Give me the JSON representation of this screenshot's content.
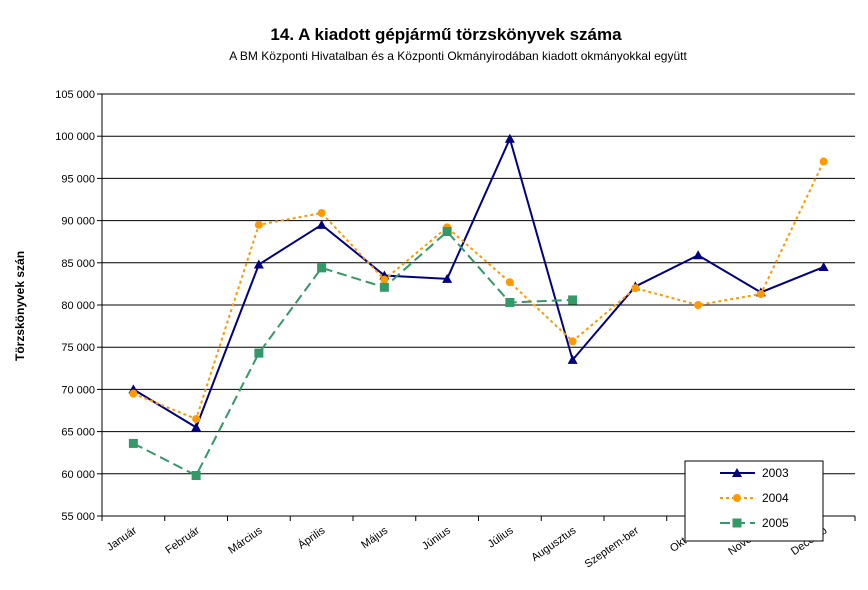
{
  "chart_data": {
    "type": "line",
    "title": "14. A  kiadott gépjármű  törzskönyvek száma",
    "subtitle": "A BM Központi Hivatalban és a Központi Okmányirodában kiadott okmányokkal együtt",
    "ylabel": "Törzskönyvek szán",
    "xlabel": "",
    "categories": [
      "Január",
      "Február",
      "Március",
      "Április",
      "Május",
      "Június",
      "Július",
      "Augusztus",
      "Szeptem-ber",
      "Október",
      "November",
      "December"
    ],
    "category_labels_visible": [
      "Január",
      "Február",
      "Március",
      "Április",
      "Május",
      "Június",
      "Július",
      "Augusztus",
      "Szeptem-ber",
      "Októbe",
      "Novemb",
      "Decemb"
    ],
    "ylim": [
      55000,
      105000
    ],
    "ytick_step": 5000,
    "ytick_labels": [
      "55 000",
      "60 000",
      "65 000",
      "70 000",
      "75 000",
      "80 000",
      "85 000",
      "90 000",
      "95 000",
      "100 000",
      "105 000"
    ],
    "grid": true,
    "legend_position": "bottom-right",
    "series": [
      {
        "name": "2003",
        "color": "#000080",
        "marker": "triangle",
        "dash": "solid",
        "values": [
          70000,
          65500,
          84800,
          89500,
          83500,
          83100,
          99700,
          73500,
          82200,
          85900,
          81500,
          84500
        ]
      },
      {
        "name": "2004",
        "color": "#ff9900",
        "marker": "circle",
        "dash": "dotted",
        "values": [
          69500,
          66500,
          89500,
          90900,
          83000,
          89200,
          82700,
          75700,
          82000,
          80000,
          81300,
          97000
        ]
      },
      {
        "name": "2005",
        "color": "#339966",
        "marker": "square",
        "dash": "dashed",
        "values": [
          63600,
          59800,
          74300,
          84400,
          82100,
          88700,
          80300,
          80600,
          null,
          null,
          null,
          null
        ]
      }
    ]
  }
}
